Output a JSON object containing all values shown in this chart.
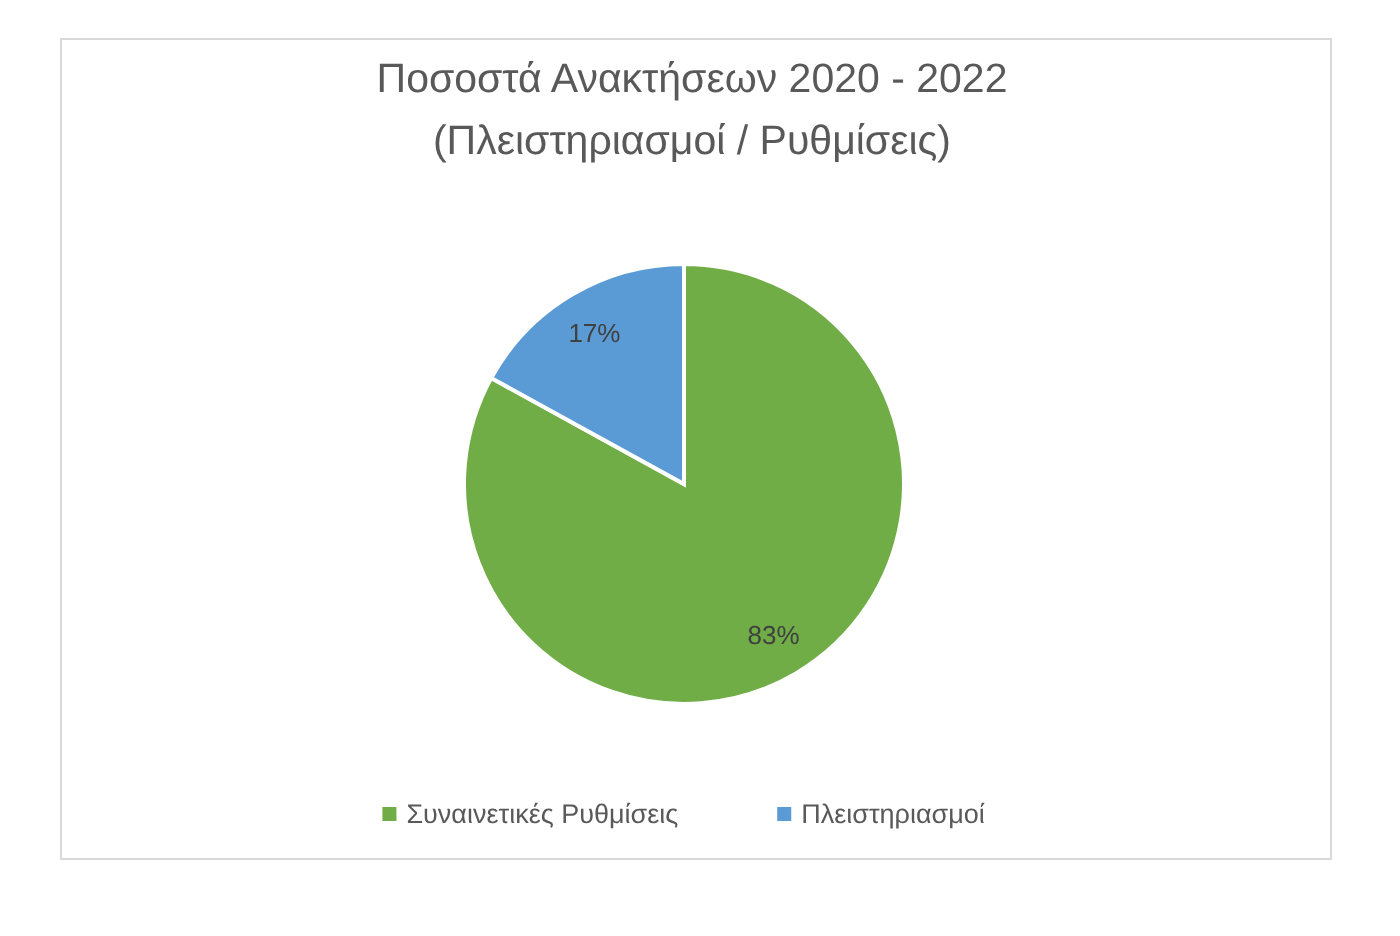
{
  "chart_data": {
    "type": "pie",
    "title": "Ποσοστά Ανακτήσεων 2020 - 2022\n(Πλειστηριασμοί / Ρυθμίσεις)",
    "categories": [
      "Συναινετικές Ρυθμίσεις",
      "Πλειστηριασμοί"
    ],
    "values": [
      83,
      17
    ],
    "colors": [
      "#70ad47",
      "#5b9bd5"
    ],
    "value_labels": [
      "83%",
      "17%"
    ],
    "legend": "bottom"
  }
}
